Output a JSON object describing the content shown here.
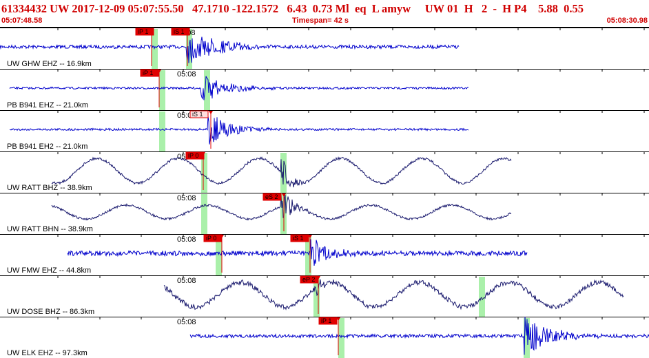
{
  "header": {
    "event_line": "61334432 UW 2017-12-09 05:07:55.50   47.1710 -122.1572   6.43  0.73 Ml  eq  L amyw     UW 01  H   2  -  H P4    5.88  0.55",
    "time_start": "05:07:48.58",
    "timespan": "Timespan=  42 s",
    "time_end": "05:08:30.98"
  },
  "colors": {
    "header_text": "#d00000",
    "trace_blue": "#0000cc",
    "trace_navy": "#1a1a6e",
    "pick_red": "#e00000",
    "window_green": "#aaf0aa"
  },
  "minute_label": "05:08",
  "traces": [
    {
      "label": "UW GHW  EHZ -- 16.9km",
      "kind": "short",
      "picks": [
        {
          "text": "iP 1",
          "style": "solid"
        },
        {
          "text": "iS 1",
          "style": "solid"
        }
      ]
    },
    {
      "label": "PB B941 EHZ -- 21.0km",
      "kind": "short",
      "picks": [
        {
          "text": "iP 1",
          "style": "solid"
        }
      ]
    },
    {
      "label": "PB B941 EH2 -- 21.0km",
      "kind": "short",
      "picks": [
        {
          "text": "iS 1",
          "style": "outline"
        }
      ]
    },
    {
      "label": "UW RATT BHZ -- 38.9km",
      "kind": "long",
      "picks": [
        {
          "text": "iP 0",
          "style": "solid"
        }
      ]
    },
    {
      "label": "UW RATT BHN -- 38.9km",
      "kind": "long",
      "picks": [
        {
          "text": "eS 2",
          "style": "solid"
        }
      ]
    },
    {
      "label": "UW FMW  EHZ -- 44.8km",
      "kind": "short",
      "picks": [
        {
          "text": "iP 0",
          "style": "solid"
        },
        {
          "text": "iS 1",
          "style": "solid"
        }
      ]
    },
    {
      "label": "UW DOSE BHZ -- 86.3km",
      "kind": "long",
      "picks": [
        {
          "text": "eP 2",
          "style": "solid"
        }
      ]
    },
    {
      "label": "UW ELK  EHZ -- 97.3km",
      "kind": "short",
      "picks": [
        {
          "text": "iP 1",
          "style": "solid"
        }
      ]
    }
  ]
}
